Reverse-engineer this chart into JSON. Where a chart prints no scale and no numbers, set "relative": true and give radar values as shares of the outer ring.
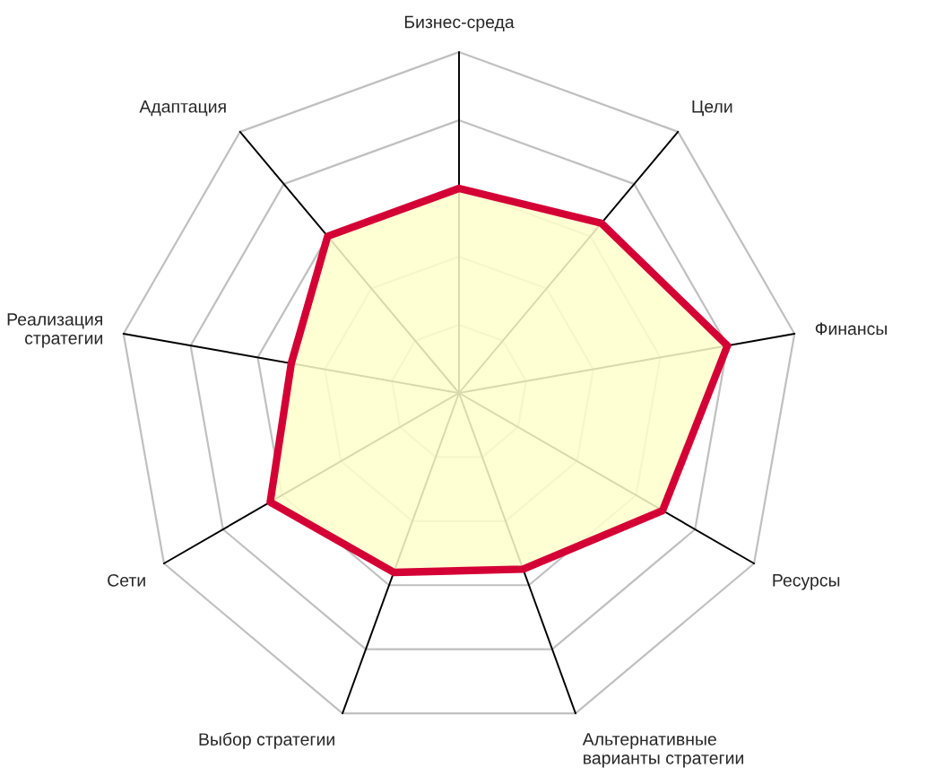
{
  "chart_data": {
    "type": "radar",
    "relative": true,
    "grid": true,
    "categories": [
      "Бизнес-среда",
      "Цели",
      "Финансы",
      "Ресурсы",
      "Альтернативные\nварианты стратегии",
      "Выбор стратегии",
      "Сети",
      "Реализация\nстратегии",
      "Адаптация"
    ],
    "series": [
      {
        "color": "#d40035",
        "values": [
          0.6,
          0.65,
          0.8,
          0.69,
          0.55,
          0.56,
          0.64,
          0.5,
          0.6
        ]
      }
    ]
  }
}
